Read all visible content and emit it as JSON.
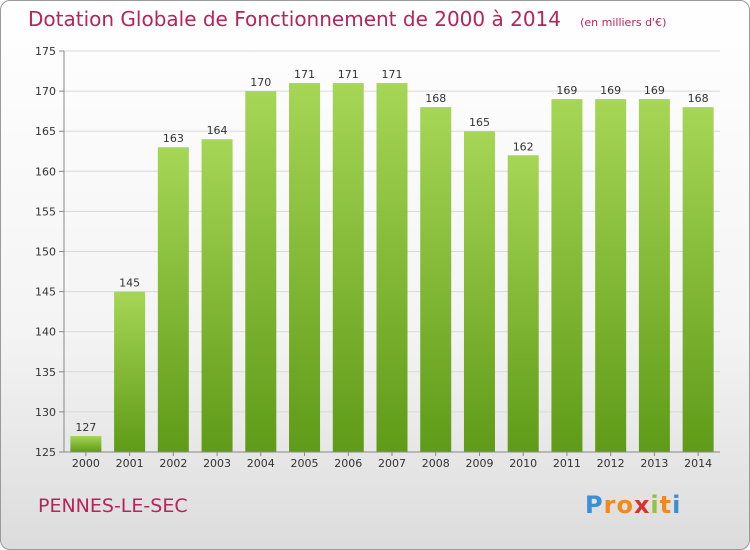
{
  "header": {
    "title": "Dotation Globale de Fonctionnement de 2000 à 2014",
    "subtitle": "(en milliers d'€)"
  },
  "footer": {
    "commune": "PENNES-LE-SEC",
    "logo_letters": [
      "P",
      "r",
      "o",
      "x",
      "i",
      "t",
      "i"
    ],
    "logo_colors": [
      "#3a8fd6",
      "#f08a1c",
      "#f08a1c",
      "#d8342e",
      "#8cc63f",
      "#f08a1c",
      "#3a8fd6"
    ]
  },
  "colors": {
    "bar_light": "#a6d655",
    "bar_dark": "#5f9b18",
    "title": "#b5245a",
    "grid": "#d9d9d9",
    "axis": "#888888"
  },
  "chart_data": {
    "type": "bar",
    "categories": [
      "2000",
      "2001",
      "2002",
      "2003",
      "2004",
      "2005",
      "2006",
      "2007",
      "2008",
      "2009",
      "2010",
      "2011",
      "2012",
      "2013",
      "2014"
    ],
    "values": [
      127,
      145,
      163,
      164,
      170,
      171,
      171,
      171,
      168,
      165,
      162,
      169,
      169,
      169,
      168
    ],
    "ylim": [
      125,
      175
    ],
    "yticks": [
      125,
      130,
      135,
      140,
      145,
      150,
      155,
      160,
      165,
      170,
      175
    ],
    "grid": true,
    "title": "Dotation Globale de Fonctionnement de 2000 à 2014",
    "xlabel": "",
    "ylabel": ""
  }
}
